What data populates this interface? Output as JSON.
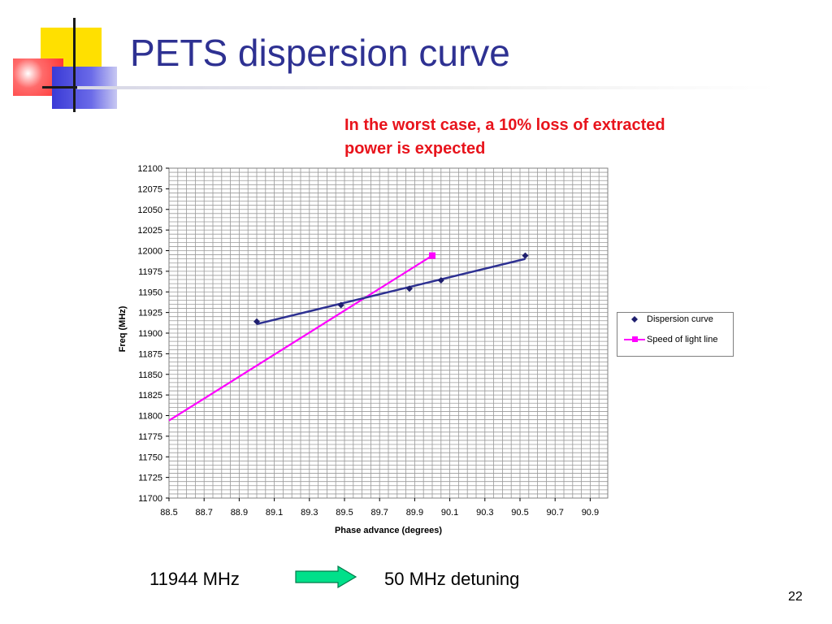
{
  "slide": {
    "title": "PETS dispersion curve",
    "callout": "In the worst case, a 10% loss of extracted power is expected",
    "bottom_left": "11944 MHz",
    "bottom_right": "50 MHz detuning",
    "page_number": "22",
    "arrow_icon": "right-arrow-icon"
  },
  "colors": {
    "title": "#2e3192",
    "callout": "#e8141c",
    "dispersion": "#2e3192",
    "speed_of_light": "#ff00ff",
    "arrow": "#00e08a"
  },
  "chart_data": {
    "type": "scatter",
    "title": "",
    "xlabel": "Phase advance (degrees)",
    "ylabel": "Freq (MHz)",
    "xlim": [
      88.5,
      91.0
    ],
    "ylim": [
      11700,
      12100
    ],
    "x_ticks": [
      "88.5",
      "88.7",
      "88.9",
      "89.1",
      "89.3",
      "89.5",
      "89.7",
      "89.9",
      "90.1",
      "90.3",
      "90.5",
      "90.7",
      "90.9"
    ],
    "y_ticks": [
      "12100",
      "12075",
      "12050",
      "12025",
      "12000",
      "11975",
      "11950",
      "11925",
      "11900",
      "11875",
      "11850",
      "11825",
      "11800",
      "11775",
      "11750",
      "11725",
      "11700"
    ],
    "grid": true,
    "legend_position": "right",
    "series": [
      {
        "name": "Dispersion curve",
        "marker": "diamond",
        "points": [
          [
            89.0,
            11914
          ],
          [
            89.48,
            11934
          ],
          [
            89.87,
            11954
          ],
          [
            90.05,
            11964
          ],
          [
            90.53,
            11994
          ]
        ],
        "trendline": [
          [
            89.0,
            11911
          ],
          [
            90.53,
            11990
          ]
        ]
      },
      {
        "name": "Speed of light line",
        "marker": "square",
        "points": [
          [
            88.5,
            11794
          ],
          [
            90.0,
            11994
          ]
        ]
      }
    ]
  }
}
